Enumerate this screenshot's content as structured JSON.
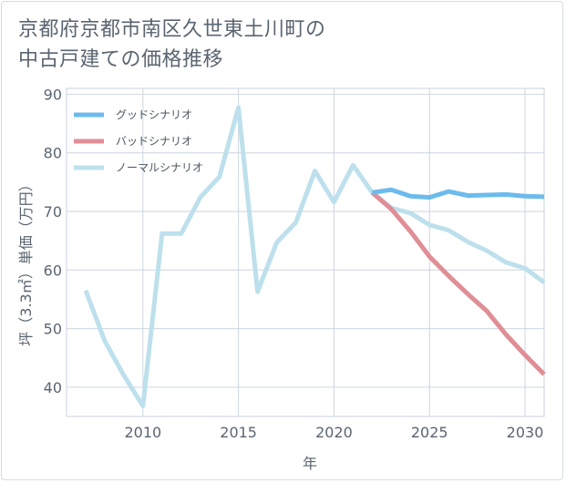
{
  "title": {
    "line1": "京都府京都市南区久世東土川町の",
    "line2": "中古戸建ての価格推移"
  },
  "chart_data": {
    "type": "line",
    "title": "京都府京都市南区久世東土川町の中古戸建ての価格推移",
    "xlabel": "年",
    "ylabel": "坪（3.3㎡）単価（万円）",
    "xlim": [
      2006,
      2031
    ],
    "ylim": [
      35,
      91
    ],
    "xticks": [
      2010,
      2015,
      2020,
      2025,
      2030
    ],
    "yticks": [
      40,
      50,
      60,
      70,
      80,
      90
    ],
    "grid": true,
    "legend_position": "top-left",
    "series": [
      {
        "name": "グッドシナリオ",
        "color": "#6cbbec",
        "x": [
          2022,
          2023,
          2024,
          2025,
          2026,
          2027,
          2028,
          2029,
          2030,
          2031
        ],
        "values": [
          73.2,
          73.7,
          72.6,
          72.4,
          73.4,
          72.7,
          72.8,
          72.9,
          72.6,
          72.5
        ]
      },
      {
        "name": "バッドシナリオ",
        "color": "#e08e96",
        "x": [
          2022,
          2023,
          2024,
          2025,
          2026,
          2027,
          2028,
          2029,
          2030,
          2031
        ],
        "values": [
          73.2,
          70.4,
          66.6,
          62.3,
          59.0,
          55.9,
          53.0,
          49.0,
          45.5,
          42.2
        ]
      },
      {
        "name": "ノーマルシナリオ",
        "color": "#bde0ec",
        "x": [
          2007,
          2008,
          2009,
          2010,
          2011,
          2012,
          2013,
          2014,
          2015,
          2016,
          2017,
          2018,
          2019,
          2020,
          2021,
          2022,
          2023,
          2024,
          2025,
          2026,
          2027,
          2028,
          2029,
          2030,
          2031
        ],
        "values": [
          56.5,
          47.9,
          42.0,
          36.8,
          66.2,
          66.2,
          72.4,
          75.9,
          87.7,
          56.3,
          64.7,
          68.1,
          76.9,
          71.6,
          77.9,
          73.2,
          70.6,
          69.7,
          67.7,
          66.8,
          64.8,
          63.3,
          61.3,
          60.3,
          57.9
        ]
      }
    ]
  }
}
